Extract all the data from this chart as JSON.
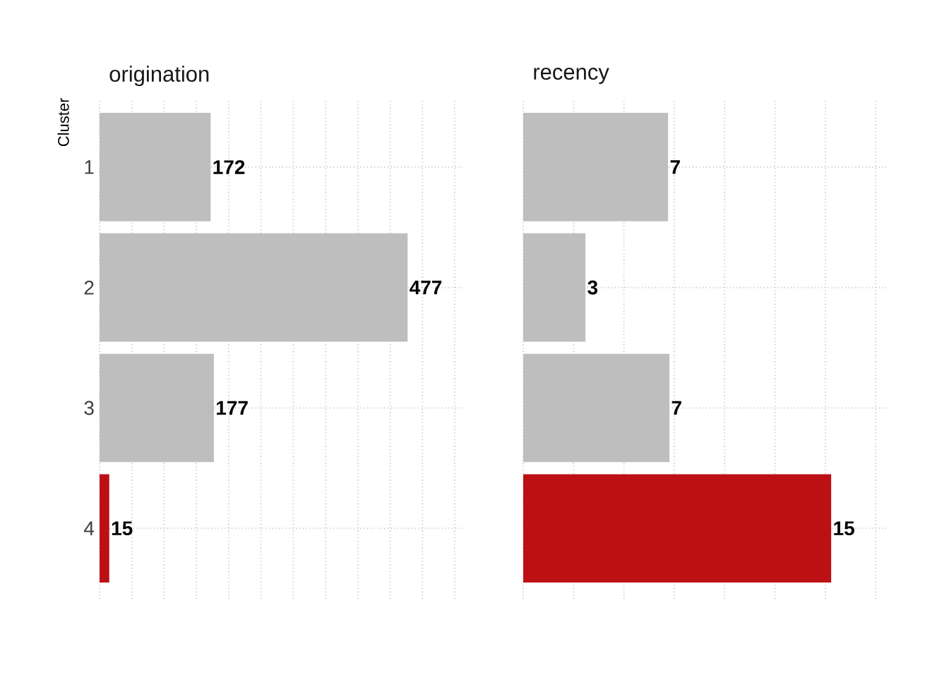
{
  "chart_data": [
    {
      "type": "bar",
      "orientation": "horizontal",
      "title": "origination",
      "ylabel": "Cluster",
      "categories": [
        "1",
        "2",
        "3",
        "4"
      ],
      "values": [
        172,
        477,
        177,
        15
      ],
      "colors": [
        "#bebebe",
        "#bebebe",
        "#bebebe",
        "#bd1014"
      ],
      "data_labels": true,
      "xlim": [
        0,
        562
      ],
      "xticks": [
        {
          "value": 0,
          "label": null
        },
        {
          "value": 50,
          "label": null
        },
        {
          "value": 100,
          "label": null
        },
        {
          "value": 150,
          "label": null
        },
        {
          "value": 200,
          "label": null
        },
        {
          "value": 250,
          "label": null
        },
        {
          "value": 300,
          "label": null
        },
        {
          "value": 350,
          "label": null
        },
        {
          "value": 400,
          "label": null
        },
        {
          "value": 450,
          "label": null
        },
        {
          "value": 500,
          "label": null
        },
        {
          "value": 550,
          "label": null
        }
      ],
      "grid": true,
      "tick_labels": "y"
    },
    {
      "type": "bar",
      "orientation": "horizontal",
      "title": "recency",
      "categories": [
        "1",
        "2",
        "3",
        "4"
      ],
      "values": [
        7.19,
        3.09,
        7.26,
        15.29
      ],
      "value_labels": [
        "7",
        "3",
        "7",
        "15"
      ],
      "colors": [
        "#bebebe",
        "#bebebe",
        "#bebebe",
        "#bd1014"
      ],
      "xlim": [
        0,
        18.09
      ],
      "xticks": [
        {
          "value": 0,
          "label": null
        },
        {
          "value": 2.5,
          "label": null
        },
        {
          "value": 5,
          "label": null
        },
        {
          "value": 7.5,
          "label": null
        },
        {
          "value": 10,
          "label": null
        },
        {
          "value": 12.5,
          "label": null
        },
        {
          "value": 15,
          "label": null
        },
        {
          "value": 17.5,
          "label": null
        }
      ],
      "grid": true,
      "tick_labels": false
    }
  ]
}
